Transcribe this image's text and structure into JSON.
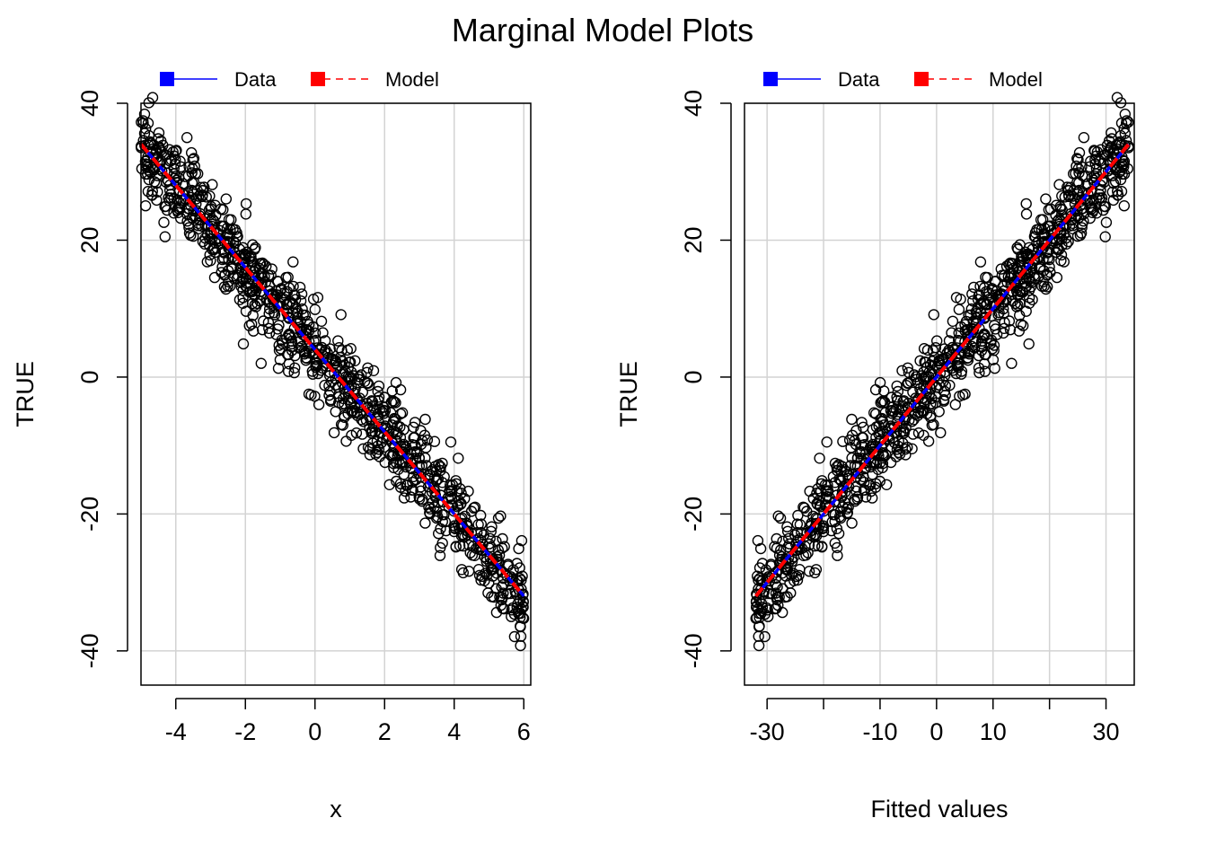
{
  "title": "Marginal Model Plots",
  "colors": {
    "data_line": "#0000FF",
    "model_line": "#FF0000",
    "points": "#000000",
    "grid": "#D3D3D3"
  },
  "legend": [
    {
      "label": "Data",
      "color": "#0000FF",
      "style": "solid"
    },
    {
      "label": "Model",
      "color": "#FF0000",
      "style": "dashed"
    }
  ],
  "chart_data": [
    {
      "type": "scatter",
      "title": "",
      "xlabel": "x",
      "ylabel": "TRUE",
      "xlim": [
        -5.0,
        6.2
      ],
      "ylim": [
        -45,
        40
      ],
      "xticks": [
        -4,
        -2,
        0,
        2,
        4,
        6
      ],
      "xtick_labels": [
        "-4",
        "-2",
        "0",
        "2",
        "4",
        "6"
      ],
      "yticks": [
        -40,
        -20,
        0,
        20,
        40
      ],
      "ytick_labels": [
        "-40",
        "-20",
        "0",
        "20",
        "40"
      ],
      "grid": true,
      "legend_position": "top",
      "point_count": 1000,
      "relationship": {
        "slope": -6.0,
        "intercept": 4.0,
        "x_range": [
          -5.0,
          6.0
        ],
        "noise_sd": 3.5
      },
      "series": [
        {
          "name": "Data",
          "style": "solid",
          "x": [
            -5.0,
            6.0
          ],
          "y": [
            34.0,
            -32.0
          ]
        },
        {
          "name": "Model",
          "style": "dashed",
          "x": [
            -5.0,
            6.0
          ],
          "y": [
            34.0,
            -32.0
          ]
        }
      ]
    },
    {
      "type": "scatter",
      "title": "",
      "xlabel": "Fitted values",
      "ylabel": "TRUE",
      "xlim": [
        -34,
        35
      ],
      "ylim": [
        -45,
        40
      ],
      "xticks": [
        -30,
        -20,
        -10,
        0,
        10,
        20,
        30
      ],
      "xtick_labels": [
        "-30",
        "",
        "-10",
        "0",
        "10",
        "",
        "30"
      ],
      "yticks": [
        -40,
        -20,
        0,
        20,
        40
      ],
      "ytick_labels": [
        "-40",
        "-20",
        "0",
        "20",
        "40"
      ],
      "grid": true,
      "legend_position": "top",
      "point_count": 1000,
      "relationship": {
        "slope": 1.0,
        "intercept": 0.0,
        "x_range": [
          -32.0,
          34.0
        ],
        "noise_sd": 3.5
      },
      "series": [
        {
          "name": "Data",
          "style": "solid",
          "x": [
            -32.0,
            34.0
          ],
          "y": [
            -32.0,
            34.0
          ]
        },
        {
          "name": "Model",
          "style": "dashed",
          "x": [
            -32.0,
            34.0
          ],
          "y": [
            -32.0,
            34.0
          ]
        }
      ]
    }
  ]
}
